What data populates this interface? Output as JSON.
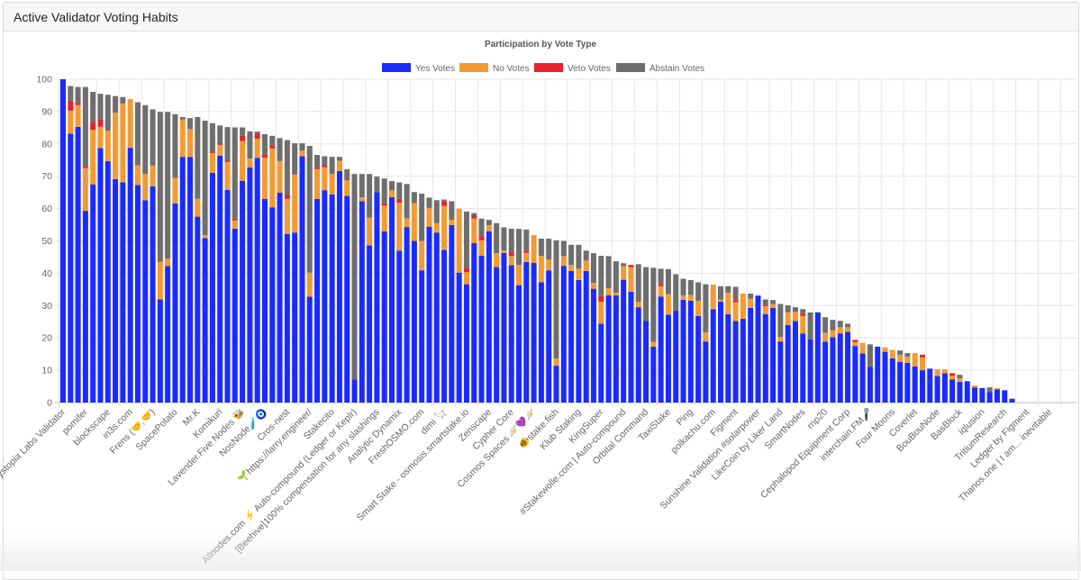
{
  "header": {
    "title": "Active Validator Voting Habits"
  },
  "chart_data": {
    "type": "bar",
    "stacked": true,
    "title": "Participation by Vote Type",
    "xlabel": "",
    "ylabel": "",
    "ylim": [
      0,
      100
    ],
    "yticks": [
      0,
      10,
      20,
      30,
      40,
      50,
      60,
      70,
      80,
      90,
      100
    ],
    "grid": true,
    "legend_position": "top-center",
    "series": [
      {
        "name": "Yes Votes",
        "color": "#1a2bff"
      },
      {
        "name": "No Votes",
        "color": "#f39a34"
      },
      {
        "name": "Veto Votes",
        "color": "#e8222a"
      },
      {
        "name": "Abstain Votes",
        "color": "#6e6e6e"
      }
    ],
    "values_order": [
      "Yes Votes",
      "No Votes",
      "Veto Votes",
      "Abstain Votes"
    ],
    "label_every": 3,
    "tick_labels": [
      "Dystopia Labs Validator",
      "pomifer",
      "blockscape",
      "in3s.com",
      "Frens (🤝,🤝)",
      "SpacePotato",
      "Mr.K",
      "Komikuri",
      "Lavender.Five Nodes 🐝",
      "NosNode🧪🧿",
      "Cros-nest",
      "🌱https://larry.engineer/",
      "Stakecito",
      "Allnodes.com ⚡️ Auto-compound (Ledger or Keplr)",
      "[Beehive]100% compensation for any slashings",
      "Analytic Dynamix",
      "FreshOSMO.com",
      "dimi 🦙",
      "Smart Stake - osmosis.smartstake.io",
      "Zenscape",
      "Cypher Core",
      "Cosmos Spaces 🪐💜🪐",
      "🐠stake.fish",
      "Klub Staking",
      "KingSuper",
      "#Stakewolle.com | Auto-compound",
      "Orbital Command",
      "TaxiStake",
      "Ping",
      "polkachu.com",
      "Figment",
      "Sunshine Validation #solarpower",
      "LikeCoin by Liker Land",
      "SmartNodes",
      "rnp20",
      "Cephalopod Equipment Corp",
      "interchain.FM🎤",
      "Four Moons",
      "Coverlet",
      "BouBouNode",
      "BasBlock",
      "iqlusion",
      "TritiumResearch",
      "Ledger by Figment",
      "Thanos.one | I am... inevitable"
    ],
    "values": [
      [
        100,
        0,
        0,
        0
      ],
      [
        83.2,
        7.1,
        3.1,
        4.5
      ],
      [
        85.3,
        6.7,
        0.7,
        4.9
      ],
      [
        59.3,
        13.2,
        0.7,
        24.4
      ],
      [
        67.5,
        16.9,
        2.2,
        9.5
      ],
      [
        78.7,
        6.6,
        2.4,
        7.8
      ],
      [
        74.7,
        9.4,
        0,
        11.1
      ],
      [
        69.1,
        20.6,
        0,
        5.1
      ],
      [
        68.1,
        24.4,
        0,
        2.0
      ],
      [
        78.8,
        15.1,
        0,
        0
      ],
      [
        67.3,
        6.1,
        0,
        19.5
      ],
      [
        62.6,
        8.1,
        0,
        21.3
      ],
      [
        66.9,
        6.4,
        0,
        17.4
      ],
      [
        31.9,
        11.6,
        0,
        46.4
      ],
      [
        42.2,
        2.3,
        0,
        45.4
      ],
      [
        61.6,
        7.9,
        0,
        19.7
      ],
      [
        76.0,
        11.6,
        0,
        0.7
      ],
      [
        76.0,
        8.6,
        0,
        3.4
      ],
      [
        57.5,
        5.5,
        0,
        25.3
      ],
      [
        50.9,
        0.9,
        0,
        35.4
      ],
      [
        71.1,
        6.1,
        0.4,
        8.8
      ],
      [
        76.4,
        3.3,
        0.5,
        5.5
      ],
      [
        65.8,
        8.6,
        0.4,
        10.4
      ],
      [
        53.8,
        2.6,
        0.5,
        28.2
      ],
      [
        68.6,
        12.3,
        1.6,
        2.6
      ],
      [
        72.7,
        2.8,
        0,
        8.4
      ],
      [
        75.7,
        5.9,
        1.4,
        0.8
      ],
      [
        63.0,
        12.8,
        0.9,
        6.3
      ],
      [
        60.4,
        18.2,
        0.9,
        3.0
      ],
      [
        64.9,
        9.8,
        0,
        7.1
      ],
      [
        52.1,
        10.9,
        1.2,
        17.0
      ],
      [
        52.6,
        17.9,
        0,
        9.7
      ],
      [
        76.2,
        1.7,
        0,
        2.3
      ],
      [
        32.8,
        7.4,
        0,
        39.2
      ],
      [
        63.0,
        9.2,
        0.6,
        3.8
      ],
      [
        65.7,
        7.1,
        0.6,
        2.8
      ],
      [
        64.4,
        6.3,
        0,
        5.3
      ],
      [
        71.6,
        3.2,
        0,
        1.2
      ],
      [
        63.9,
        4.9,
        0.5,
        2.9
      ],
      [
        7.2,
        0,
        0,
        63.5
      ],
      [
        62.3,
        1.2,
        0,
        7.2
      ],
      [
        48.6,
        8.6,
        0,
        13.5
      ],
      [
        65.1,
        0,
        0,
        4.8
      ],
      [
        53.0,
        7.9,
        0.7,
        7.7
      ],
      [
        63.5,
        2.1,
        0,
        2.9
      ],
      [
        47.0,
        14.8,
        1.2,
        5.1
      ],
      [
        54.3,
        2.7,
        0,
        10.6
      ],
      [
        50.0,
        11.7,
        0,
        3.4
      ],
      [
        40.9,
        9.1,
        0,
        14.6
      ],
      [
        54.4,
        5.8,
        0,
        3.2
      ],
      [
        52.6,
        2.9,
        0,
        7.1
      ],
      [
        47.2,
        13.6,
        1.5,
        0.5
      ],
      [
        54.9,
        1.6,
        0,
        5.8
      ],
      [
        40.2,
        19.8,
        0,
        0
      ],
      [
        36.6,
        3.8,
        1.2,
        17.5
      ],
      [
        49.3,
        7.6,
        0.9,
        0.8
      ],
      [
        45.4,
        4.8,
        1.2,
        5.5
      ],
      [
        53.0,
        1.9,
        0,
        1.6
      ],
      [
        41.9,
        4.3,
        0,
        9.3
      ],
      [
        46.3,
        0.7,
        0,
        7.2
      ],
      [
        42.5,
        2.8,
        1.2,
        7.3
      ],
      [
        36.3,
        6.3,
        0,
        11.1
      ],
      [
        43.5,
        2.8,
        0.7,
        6.5
      ],
      [
        43.2,
        8.6,
        0,
        0
      ],
      [
        37.2,
        8.2,
        0,
        5.3
      ],
      [
        40.9,
        3.3,
        0,
        6.5
      ],
      [
        11.4,
        2.2,
        0,
        36.6
      ],
      [
        42.3,
        3.0,
        0,
        4.7
      ],
      [
        40.7,
        1.9,
        0,
        6.2
      ],
      [
        37.9,
        3.5,
        0,
        7.4
      ],
      [
        40.7,
        3.2,
        0,
        3.1
      ],
      [
        35.2,
        1.8,
        0,
        9.2
      ],
      [
        24.4,
        6.8,
        1.9,
        12.3
      ],
      [
        33.2,
        2.2,
        0,
        9.9
      ],
      [
        33.2,
        0.8,
        0,
        9.7
      ],
      [
        38.0,
        4.2,
        0,
        0.9
      ],
      [
        34.3,
        7.6,
        0.7,
        0
      ],
      [
        29.5,
        1.7,
        0,
        11.6
      ],
      [
        25.2,
        0,
        0,
        16.7
      ],
      [
        17.3,
        1.5,
        0,
        22.9
      ],
      [
        32.8,
        3.2,
        0.6,
        4.8
      ],
      [
        27.2,
        6.3,
        0,
        7.8
      ],
      [
        28.4,
        0,
        0,
        11.3
      ],
      [
        31.8,
        1.3,
        0,
        5.2
      ],
      [
        31.5,
        1.8,
        0,
        4.6
      ],
      [
        26.8,
        4.7,
        0,
        5.7
      ],
      [
        18.9,
        2.8,
        0,
        14.9
      ],
      [
        28.9,
        7.6,
        0,
        0
      ],
      [
        31.2,
        0.6,
        0,
        4.2
      ],
      [
        27.3,
        6.7,
        0,
        2.0
      ],
      [
        25.2,
        5.8,
        0.7,
        4.1
      ],
      [
        25.9,
        7.8,
        0,
        0
      ],
      [
        29.3,
        2.8,
        0,
        1.6
      ],
      [
        33.1,
        0,
        0,
        0
      ],
      [
        27.3,
        2.5,
        0.5,
        1.6
      ],
      [
        29.3,
        1.2,
        0,
        1.2
      ],
      [
        18.9,
        1.4,
        0,
        10.2
      ],
      [
        24.0,
        3.9,
        0,
        2.2
      ],
      [
        25.2,
        2.9,
        0,
        1.4
      ],
      [
        21.4,
        5.4,
        0.7,
        1.4
      ],
      [
        19.6,
        0,
        0,
        8.3
      ],
      [
        27.9,
        0,
        0,
        0
      ],
      [
        18.8,
        2.8,
        0,
        4.8
      ],
      [
        20.2,
        2.2,
        0,
        3.2
      ],
      [
        21.4,
        1.9,
        0,
        2.0
      ],
      [
        21.9,
        1.4,
        0,
        1.1
      ],
      [
        17.5,
        1.2,
        0.7,
        0
      ],
      [
        15.2,
        3.3,
        0,
        0
      ],
      [
        11.0,
        0,
        0,
        7.0
      ],
      [
        17.3,
        0,
        0,
        0
      ],
      [
        15.7,
        1.4,
        0,
        0
      ],
      [
        13.7,
        2.6,
        0,
        0
      ],
      [
        12.6,
        2.2,
        0,
        1.3
      ],
      [
        12.3,
        1.9,
        0,
        1.1
      ],
      [
        11.2,
        4.1,
        0,
        0
      ],
      [
        10.0,
        4.0,
        0.8,
        0
      ],
      [
        10.5,
        0,
        0,
        0
      ],
      [
        8.2,
        2.1,
        0,
        0
      ],
      [
        9.1,
        1.2,
        0,
        0
      ],
      [
        7.2,
        1.1,
        0.8,
        0
      ],
      [
        6.4,
        1.1,
        0,
        1.1
      ],
      [
        6.6,
        0,
        0,
        0
      ],
      [
        4.7,
        0.6,
        0,
        0
      ],
      [
        4.5,
        0,
        0,
        0
      ],
      [
        3.3,
        0,
        0,
        1.4
      ],
      [
        4.1,
        0.4,
        0,
        0
      ],
      [
        3.8,
        0,
        0,
        0
      ],
      [
        1.2,
        0,
        0,
        0
      ],
      [
        0,
        0,
        0,
        0
      ],
      [
        0,
        0,
        0,
        0
      ],
      [
        0,
        0,
        0,
        0
      ],
      [
        0,
        0,
        0,
        0
      ],
      [
        0,
        0,
        0,
        0
      ]
    ]
  }
}
